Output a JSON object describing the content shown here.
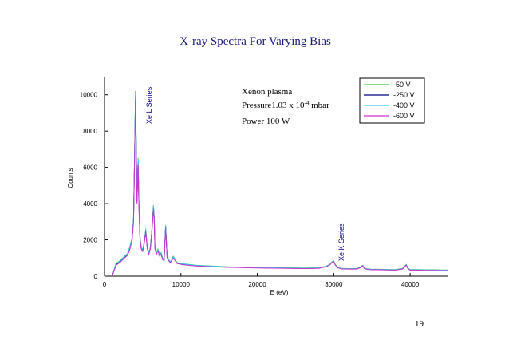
{
  "slide": {
    "page_number": "19"
  },
  "chart_data": {
    "type": "line",
    "title": "X-ray Spectra For Varying Bias",
    "xlabel": "E (eV)",
    "ylabel": "Counts",
    "xlim": [
      0,
      45000
    ],
    "ylim": [
      0,
      11000
    ],
    "xticks": [
      0,
      10000,
      20000,
      30000,
      40000
    ],
    "xtick_labels": [
      "0",
      "10000",
      "20000",
      "30000",
      "40000"
    ],
    "yticks": [
      0,
      2000,
      4000,
      6000,
      8000,
      10000
    ],
    "ytick_labels": [
      "0",
      "2000",
      "4000",
      "6000",
      "8000",
      "10000"
    ],
    "grid": false,
    "legend_position": "top-right",
    "annotations": {
      "xe_l": "Xe L Series",
      "xe_k": "Xe K Series",
      "plasma": "Xenon plasma",
      "pressure_prefix": "Pressure1.03 x 10",
      "pressure_exp": "-4",
      "pressure_unit": " mbar",
      "power": "Power 100 W"
    },
    "x": [
      1000,
      1500,
      2000,
      2500,
      3000,
      3300,
      3600,
      3800,
      3950,
      4050,
      4150,
      4250,
      4400,
      4500,
      4650,
      4800,
      5000,
      5200,
      5400,
      5600,
      5800,
      6000,
      6200,
      6400,
      6500,
      6600,
      6800,
      7000,
      7200,
      7400,
      7600,
      7800,
      8000,
      8100,
      8200,
      8400,
      8600,
      8800,
      9000,
      9500,
      10000,
      11000,
      12000,
      14000,
      16000,
      18000,
      20000,
      22000,
      24000,
      26000,
      28000,
      29000,
      29500,
      29800,
      30000,
      30200,
      30500,
      31000,
      32000,
      33000,
      33500,
      33800,
      34000,
      34500,
      35000,
      36000,
      37000,
      38000,
      39000,
      39300,
      39500,
      39700,
      40000,
      41000,
      42000,
      43000,
      44000,
      45000
    ],
    "series": [
      {
        "name": "-50 V",
        "color": "#33cc33",
        "values": [
          0,
          700,
          850,
          1050,
          1250,
          1600,
          2100,
          3200,
          7000,
          10200,
          7500,
          4300,
          6500,
          4200,
          2200,
          1600,
          1450,
          1900,
          2600,
          1600,
          1300,
          1600,
          2600,
          3900,
          3300,
          1600,
          1300,
          1500,
          1200,
          1300,
          1000,
          900,
          2800,
          1900,
          1100,
          900,
          800,
          900,
          1100,
          750,
          700,
          650,
          600,
          560,
          520,
          500,
          480,
          470,
          460,
          450,
          460,
          550,
          650,
          800,
          850,
          650,
          500,
          430,
          420,
          420,
          500,
          600,
          450,
          400,
          380,
          380,
          370,
          360,
          420,
          550,
          650,
          450,
          360,
          360,
          350,
          350,
          340,
          340
        ]
      },
      {
        "name": "-250 V",
        "color": "#000080",
        "values": [
          0,
          650,
          800,
          1000,
          1200,
          1500,
          2000,
          3100,
          6800,
          9900,
          7300,
          4100,
          6300,
          4000,
          2100,
          1550,
          1400,
          1850,
          2500,
          1550,
          1250,
          1550,
          2500,
          3800,
          3200,
          1550,
          1250,
          1450,
          1150,
          1250,
          950,
          870,
          2700,
          1850,
          1050,
          870,
          780,
          870,
          1050,
          720,
          680,
          630,
          580,
          540,
          500,
          480,
          460,
          450,
          440,
          430,
          440,
          530,
          630,
          780,
          820,
          630,
          480,
          410,
          400,
          400,
          480,
          580,
          430,
          380,
          360,
          360,
          350,
          340,
          400,
          530,
          620,
          430,
          340,
          340,
          330,
          330,
          320,
          320
        ]
      },
      {
        "name": "-400 V",
        "color": "#33ccff",
        "values": [
          0,
          680,
          820,
          1020,
          1230,
          1550,
          2050,
          3150,
          6900,
          10000,
          7400,
          4200,
          6400,
          4100,
          2150,
          1580,
          1420,
          1870,
          2550,
          1580,
          1270,
          1580,
          2550,
          3850,
          3250,
          1580,
          1270,
          1470,
          1170,
          1270,
          970,
          880,
          2750,
          1870,
          1070,
          880,
          790,
          880,
          1070,
          730,
          690,
          640,
          590,
          550,
          510,
          490,
          470,
          460,
          450,
          440,
          450,
          540,
          640,
          790,
          830,
          640,
          490,
          420,
          410,
          410,
          490,
          590,
          440,
          390,
          370,
          370,
          360,
          350,
          410,
          540,
          630,
          440,
          350,
          350,
          340,
          340,
          330,
          330
        ]
      },
      {
        "name": "-600 V",
        "color": "#cc33cc",
        "values": [
          0,
          600,
          750,
          950,
          1150,
          1450,
          1950,
          3000,
          6600,
          9700,
          7100,
          4000,
          6100,
          3900,
          2050,
          1500,
          1350,
          1800,
          2450,
          1500,
          1200,
          1500,
          2450,
          3700,
          3150,
          1500,
          1200,
          1400,
          1100,
          1200,
          900,
          850,
          2650,
          1800,
          1000,
          850,
          750,
          850,
          1000,
          700,
          650,
          600,
          560,
          520,
          490,
          470,
          450,
          440,
          430,
          420,
          430,
          520,
          620,
          770,
          800,
          620,
          470,
          400,
          390,
          390,
          470,
          570,
          420,
          370,
          350,
          350,
          340,
          330,
          390,
          520,
          610,
          420,
          330,
          330,
          320,
          320,
          310,
          310
        ]
      }
    ]
  }
}
